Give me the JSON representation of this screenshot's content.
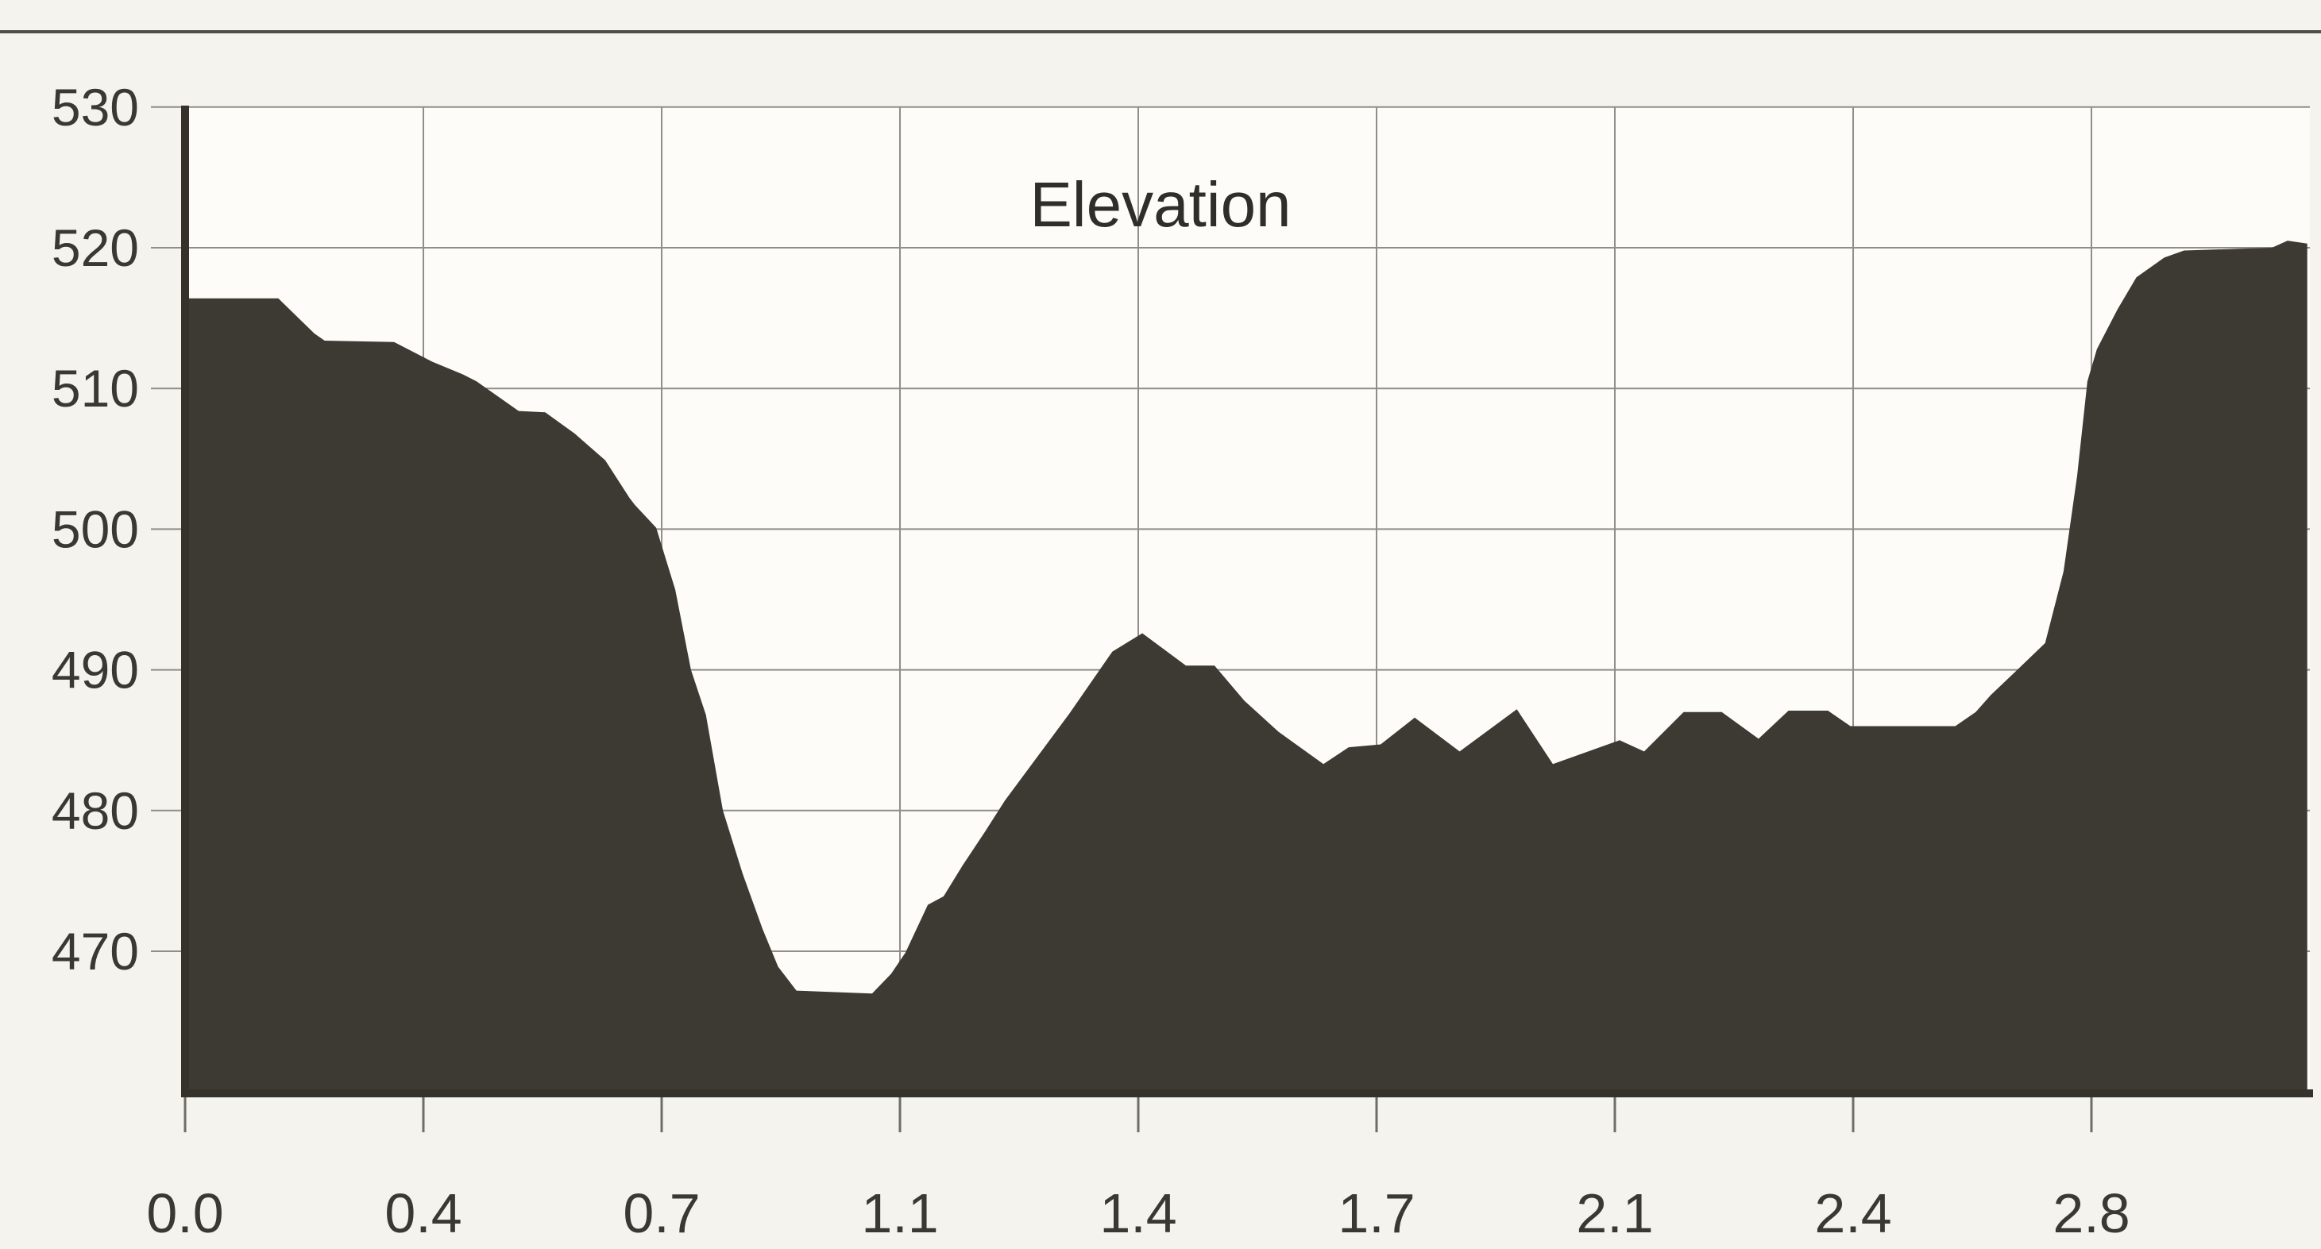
{
  "page": {
    "background": "#f5f3ed",
    "description": "Scanned elevation profile area chart"
  },
  "chart_data": {
    "type": "area",
    "title": "Elevation",
    "xlabel": "",
    "ylabel": "",
    "grid": true,
    "legend_position": "none",
    "ylim": [
      459.7,
      530
    ],
    "xlim_mi": [
      0,
      3.117
    ],
    "y_ticks": [
      {
        "label": "470",
        "ft": 470
      },
      {
        "label": "480",
        "ft": 480
      },
      {
        "label": "490",
        "ft": 490
      },
      {
        "label": "500",
        "ft": 500
      },
      {
        "label": "510",
        "ft": 510
      },
      {
        "label": "520",
        "ft": 520
      },
      {
        "label": "530",
        "ft": 530
      }
    ],
    "x_ticks": [
      {
        "label": "0.0",
        "mi": 0.0
      },
      {
        "label": "0.4",
        "mi": 0.35
      },
      {
        "label": "0.7",
        "mi": 0.7
      },
      {
        "label": "1.1",
        "mi": 1.05
      },
      {
        "label": "1.4",
        "mi": 1.4
      },
      {
        "label": "1.7",
        "mi": 1.75
      },
      {
        "label": "2.1",
        "mi": 2.1
      },
      {
        "label": "2.4",
        "mi": 2.45
      },
      {
        "label": "2.8",
        "mi": 2.8
      }
    ],
    "colors": {
      "paper": "#f5f3ed",
      "plot_bg": "#fdfcf8",
      "area_fill": "#3d3a33",
      "grid": "#8f8e88",
      "axis": "#34322b",
      "tick": "#6e6d67",
      "label_text": "#3a3833",
      "title_text": "#2f2e29",
      "top_rule": "#4f4d48"
    },
    "series": [
      {
        "name": "Elevation profile",
        "points": [
          [
            0.0,
            516.4
          ],
          [
            0.137,
            516.4
          ],
          [
            0.19,
            513.9
          ],
          [
            0.205,
            513.4
          ],
          [
            0.307,
            513.3
          ],
          [
            0.363,
            511.9
          ],
          [
            0.408,
            511.0
          ],
          [
            0.428,
            510.5
          ],
          [
            0.49,
            508.4
          ],
          [
            0.529,
            508.3
          ],
          [
            0.572,
            506.8
          ],
          [
            0.617,
            504.9
          ],
          [
            0.653,
            502.2
          ],
          [
            0.661,
            501.7
          ],
          [
            0.692,
            500.1
          ],
          [
            0.72,
            495.7
          ],
          [
            0.743,
            490.0
          ],
          [
            0.765,
            486.8
          ],
          [
            0.79,
            480.0
          ],
          [
            0.819,
            475.5
          ],
          [
            0.848,
            471.6
          ],
          [
            0.871,
            468.9
          ],
          [
            0.898,
            467.2
          ],
          [
            1.009,
            467.0
          ],
          [
            1.037,
            468.4
          ],
          [
            1.058,
            469.9
          ],
          [
            1.091,
            473.3
          ],
          [
            1.114,
            473.9
          ],
          [
            1.142,
            476.1
          ],
          [
            1.175,
            478.5
          ],
          [
            1.204,
            480.7
          ],
          [
            1.299,
            486.9
          ],
          [
            1.362,
            491.3
          ],
          [
            1.406,
            492.6
          ],
          [
            1.47,
            490.3
          ],
          [
            1.512,
            490.3
          ],
          [
            1.556,
            487.8
          ],
          [
            1.606,
            485.6
          ],
          [
            1.672,
            483.3
          ],
          [
            1.709,
            484.5
          ],
          [
            1.756,
            484.7
          ],
          [
            1.806,
            486.6
          ],
          [
            1.872,
            484.2
          ],
          [
            1.956,
            487.2
          ],
          [
            2.009,
            483.3
          ],
          [
            2.107,
            485.0
          ],
          [
            2.143,
            484.2
          ],
          [
            2.201,
            487.0
          ],
          [
            2.257,
            487.0
          ],
          [
            2.311,
            485.1
          ],
          [
            2.355,
            487.1
          ],
          [
            2.413,
            487.1
          ],
          [
            2.446,
            486.0
          ],
          [
            2.6,
            486.0
          ],
          [
            2.63,
            487.0
          ],
          [
            2.652,
            488.2
          ],
          [
            2.691,
            490.0
          ],
          [
            2.732,
            491.9
          ],
          [
            2.759,
            497.0
          ],
          [
            2.779,
            503.8
          ],
          [
            2.794,
            510.5
          ],
          [
            2.808,
            512.8
          ],
          [
            2.838,
            515.6
          ],
          [
            2.866,
            517.9
          ],
          [
            2.907,
            519.3
          ],
          [
            2.936,
            519.8
          ],
          [
            3.065,
            520.0
          ],
          [
            3.088,
            520.5
          ],
          [
            3.117,
            520.3
          ]
        ]
      }
    ]
  }
}
